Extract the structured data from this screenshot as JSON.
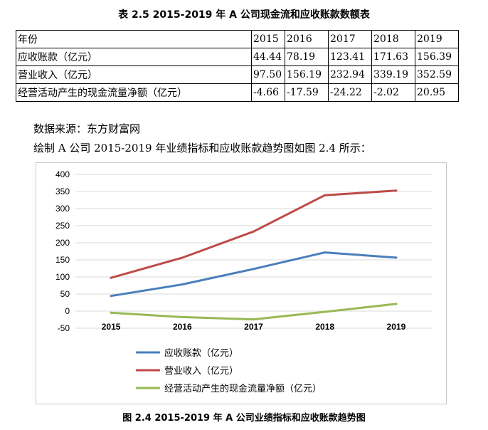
{
  "table_caption": "表 2.5 2015-2019 年 A 公司现金流和应收账款数额表",
  "table": {
    "header": [
      "年份",
      "2015",
      "2016",
      "2017",
      "2018",
      "2019"
    ],
    "rows": [
      [
        "应收账款（亿元）",
        "44.44",
        "78.19",
        "123.41",
        "171.63",
        "156.39"
      ],
      [
        "营业收入（亿元）",
        "97.50",
        "156.19",
        "232.94",
        "339.19",
        "352.59"
      ],
      [
        "经营活动产生的现金流量净额（亿元）",
        "-4.66",
        "-17.59",
        "-24.22",
        "-2.02",
        "20.95"
      ]
    ]
  },
  "source_text": "数据来源：东方财富网",
  "intro_text": "绘制 A 公司 2015-2019 年业绩指标和应收账款趋势图如图 2.4 所示：",
  "figure_caption": "图 2.4 2015-2019 年 A 公司业绩指标和应收账款趋势图",
  "chart_data": {
    "type": "line",
    "title": "",
    "xlabel": "",
    "ylabel": "",
    "categories": [
      "2015",
      "2016",
      "2017",
      "2018",
      "2019"
    ],
    "ylim": [
      -50,
      400
    ],
    "yticks": [
      "-50",
      "0",
      "50",
      "100",
      "150",
      "200",
      "250",
      "300",
      "350",
      "400"
    ],
    "grid": true,
    "legend_position": "bottom",
    "series": [
      {
        "name": "应收账款（亿元）",
        "color": "#4a7ebb",
        "values": [
          44.44,
          78.19,
          123.41,
          171.63,
          156.39
        ]
      },
      {
        "name": "营业收入（亿元）",
        "color": "#be4b48",
        "values": [
          97.5,
          156.19,
          232.94,
          339.19,
          352.59
        ]
      },
      {
        "name": "经营活动产生的现金流量净额（亿元）",
        "color": "#98b954",
        "values": [
          -4.66,
          -17.59,
          -24.22,
          -2.02,
          20.95
        ]
      }
    ]
  }
}
